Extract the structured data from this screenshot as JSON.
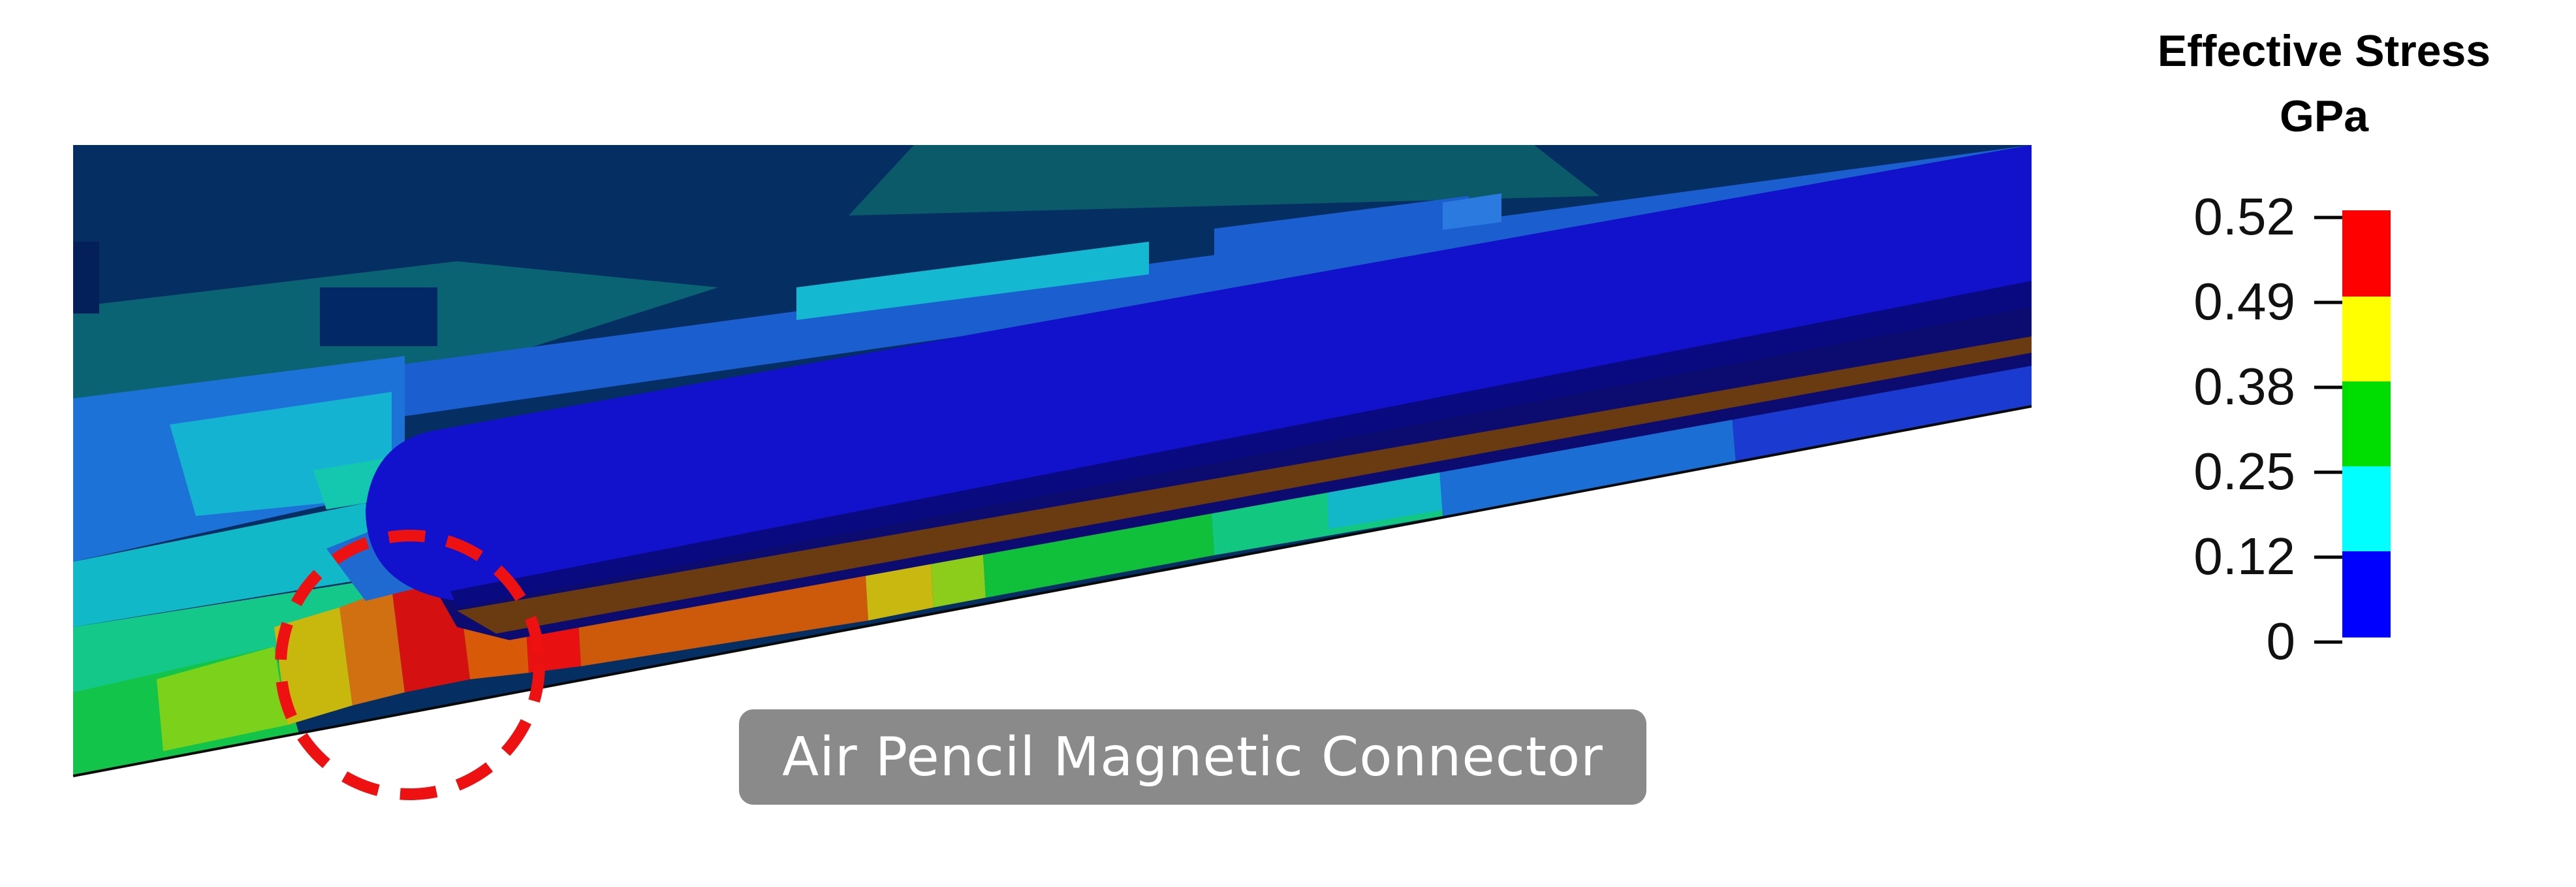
{
  "caption": "Air Pencil Magnetic Connector",
  "legend": {
    "title_line1": "Effective Stress",
    "title_line2": "GPa",
    "ticks": [
      "0.52",
      "0.49",
      "0.38",
      "0.25",
      "0.12",
      "0"
    ],
    "bands": [
      {
        "color": "#ff0000"
      },
      {
        "color": "#ffff00"
      },
      {
        "color": "#00dd00"
      },
      {
        "color": "#00ffff"
      },
      {
        "color": "#0000ff"
      }
    ]
  },
  "colors": {
    "background_field": "#052f63",
    "pencil_body": "#1010cc",
    "highlight_circle": "#ee1111"
  }
}
